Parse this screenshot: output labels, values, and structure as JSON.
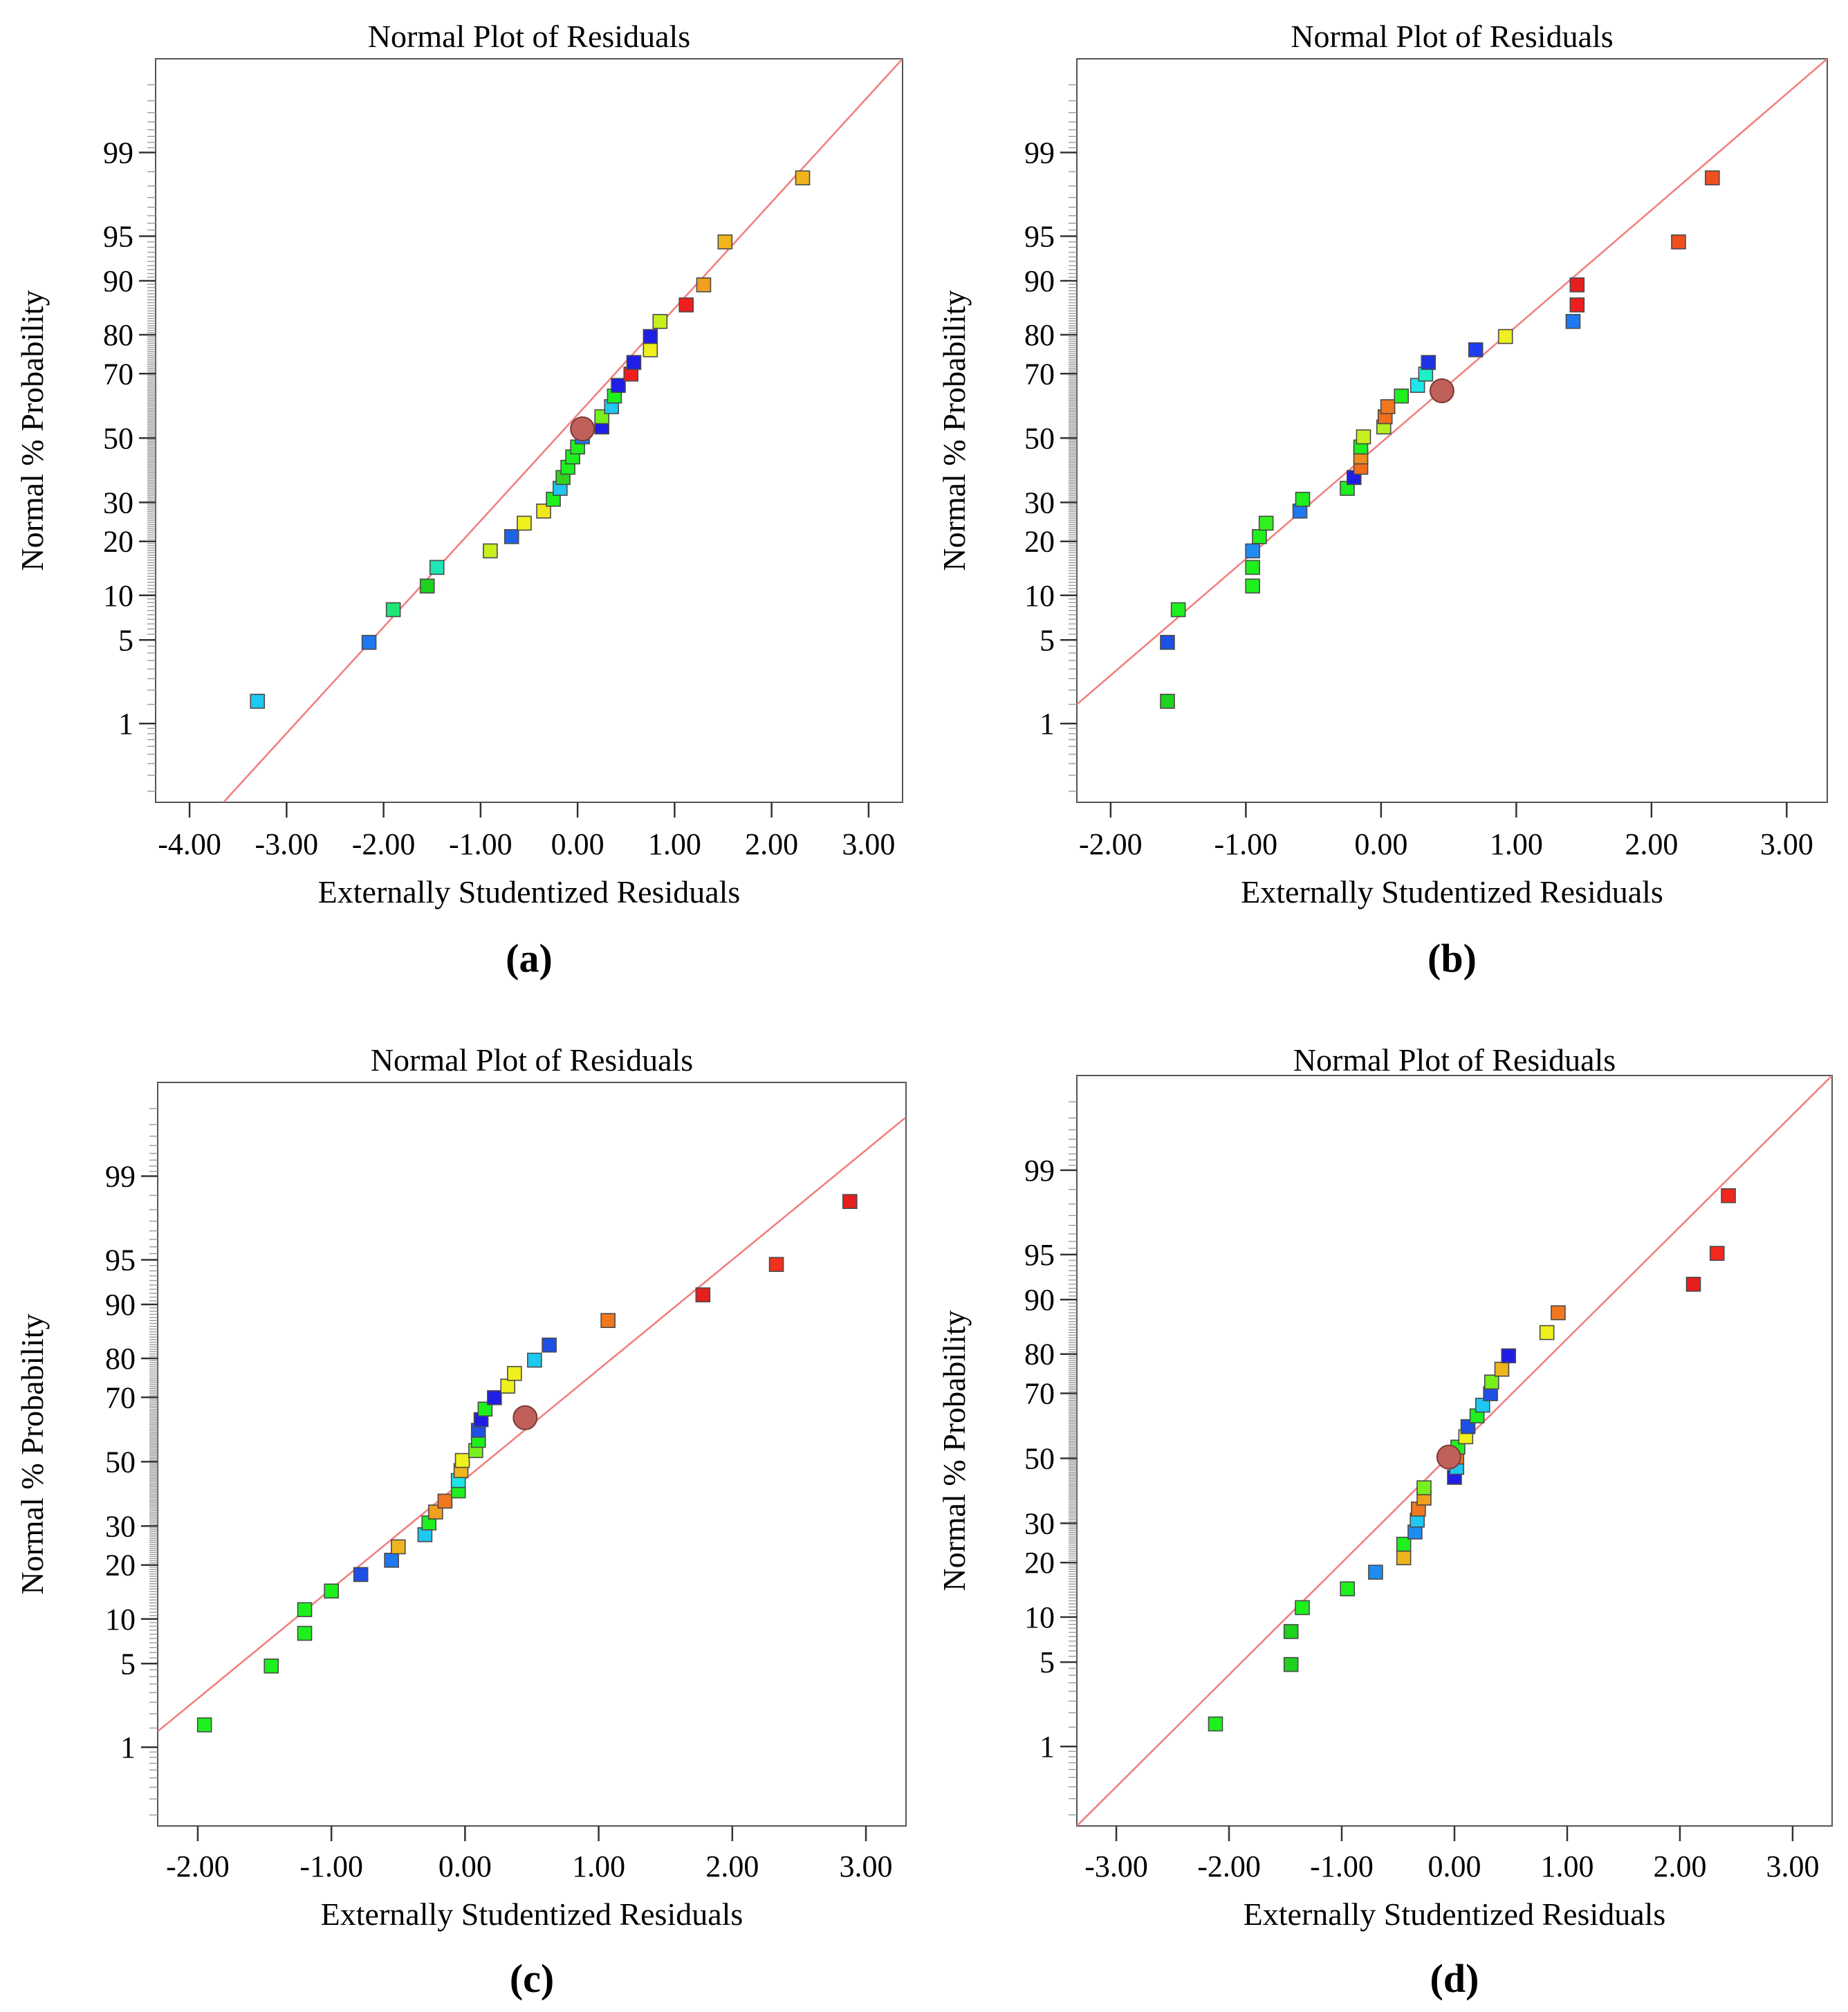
{
  "figure": {
    "panels": [
      {
        "caption": "(a)",
        "chart_data": {
          "type": "scatter",
          "title": "Normal Plot of Residuals",
          "xlabel": "Externally Studentized Residuals",
          "ylabel": "Normal % Probability",
          "x_ticks": [
            "-4.00",
            "-3.00",
            "-2.00",
            "-1.00",
            "0.00",
            "1.00",
            "2.00",
            "3.00"
          ],
          "y_ticks": [
            "1",
            "5",
            "10",
            "20",
            "30",
            "50",
            "70",
            "80",
            "90",
            "95",
            "99"
          ],
          "xlim": [
            -4.35,
            3.35
          ],
          "ylim": [
            0.15,
            99.9
          ],
          "y_scale": "normal-probability",
          "grid": false,
          "reference_line": {
            "x": [
              -3.65,
              3.35
            ],
            "y": [
              0.15,
              99.9
            ],
            "color": "#f08080"
          },
          "highlight_point": {
            "x": 0.05,
            "y": 53,
            "color": "#c0605a"
          },
          "points": [
            {
              "x": -3.3,
              "y": 1.6,
              "color": "#1ec8f0"
            },
            {
              "x": -2.15,
              "y": 4.8,
              "color": "#1e78f0"
            },
            {
              "x": -1.9,
              "y": 8.1,
              "color": "#1ee678"
            },
            {
              "x": -1.55,
              "y": 11.4,
              "color": "#1ed21e"
            },
            {
              "x": -1.45,
              "y": 14.6,
              "color": "#1ee6b4"
            },
            {
              "x": -0.9,
              "y": 17.9,
              "color": "#c8f01e"
            },
            {
              "x": -0.68,
              "y": 21.1,
              "color": "#1e64e6"
            },
            {
              "x": -0.55,
              "y": 24.4,
              "color": "#f0f01e"
            },
            {
              "x": -0.35,
              "y": 27.6,
              "color": "#f0e61e"
            },
            {
              "x": -0.25,
              "y": 30.9,
              "color": "#1ef01e"
            },
            {
              "x": -0.18,
              "y": 34.1,
              "color": "#1ec8f0"
            },
            {
              "x": -0.15,
              "y": 37.4,
              "color": "#32d21e"
            },
            {
              "x": -0.1,
              "y": 40.6,
              "color": "#1ef01e"
            },
            {
              "x": -0.05,
              "y": 43.9,
              "color": "#1ef01e"
            },
            {
              "x": 0.0,
              "y": 47.1,
              "color": "#1ef01e"
            },
            {
              "x": 0.05,
              "y": 50.4,
              "color": "#1e78f0"
            },
            {
              "x": 0.25,
              "y": 53.6,
              "color": "#1e1ee6"
            },
            {
              "x": 0.25,
              "y": 56.9,
              "color": "#78f01e"
            },
            {
              "x": 0.35,
              "y": 60.1,
              "color": "#1ec8f0"
            },
            {
              "x": 0.38,
              "y": 63.4,
              "color": "#1ef01e"
            },
            {
              "x": 0.42,
              "y": 66.6,
              "color": "#1e1ee6"
            },
            {
              "x": 0.55,
              "y": 69.9,
              "color": "#f01e1e"
            },
            {
              "x": 0.58,
              "y": 73.1,
              "color": "#1e1ee6"
            },
            {
              "x": 0.75,
              "y": 76.4,
              "color": "#f0f01e"
            },
            {
              "x": 0.75,
              "y": 79.6,
              "color": "#1e1ee6"
            },
            {
              "x": 0.85,
              "y": 82.9,
              "color": "#c8f01e"
            },
            {
              "x": 1.12,
              "y": 86.1,
              "color": "#f01e1e"
            },
            {
              "x": 1.3,
              "y": 89.4,
              "color": "#f0a01e"
            },
            {
              "x": 1.52,
              "y": 94.5,
              "color": "#f0b41e"
            },
            {
              "x": 2.32,
              "y": 98.3,
              "color": "#f0b41e"
            }
          ]
        }
      },
      {
        "caption": "(b)",
        "chart_data": {
          "type": "scatter",
          "title": "Normal Plot of Residuals",
          "xlabel": "Externally Studentized Residuals",
          "ylabel": "Normal % Probability",
          "x_ticks": [
            "-2.00",
            "-1.00",
            "0.00",
            "1.00",
            "2.00",
            "3.00"
          ],
          "y_ticks": [
            "1",
            "5",
            "10",
            "20",
            "30",
            "50",
            "70",
            "80",
            "90",
            "95",
            "99"
          ],
          "xlim": [
            -2.25,
            3.3
          ],
          "ylim": [
            0.15,
            99.9
          ],
          "y_scale": "normal-probability",
          "grid": false,
          "reference_line": {
            "x": [
              -2.25,
              3.3
            ],
            "y": [
              1.5,
              99.9
            ],
            "color": "#f08080"
          },
          "highlight_point": {
            "x": 0.45,
            "y": 65,
            "color": "#c0605a"
          },
          "points": [
            {
              "x": -1.58,
              "y": 1.6,
              "color": "#1ed21e"
            },
            {
              "x": -1.58,
              "y": 4.8,
              "color": "#1e50e6"
            },
            {
              "x": -1.5,
              "y": 8.1,
              "color": "#1ef01e"
            },
            {
              "x": -0.95,
              "y": 11.4,
              "color": "#1ef01e"
            },
            {
              "x": -0.95,
              "y": 14.6,
              "color": "#1ef01e"
            },
            {
              "x": -0.95,
              "y": 17.9,
              "color": "#1e8cf0"
            },
            {
              "x": -0.9,
              "y": 21.1,
              "color": "#1ef01e"
            },
            {
              "x": -0.85,
              "y": 24.4,
              "color": "#32f01e"
            },
            {
              "x": -0.6,
              "y": 27.6,
              "color": "#1e78f0"
            },
            {
              "x": -0.58,
              "y": 30.9,
              "color": "#1ef01e"
            },
            {
              "x": -0.25,
              "y": 34.1,
              "color": "#1ef01e"
            },
            {
              "x": -0.2,
              "y": 37.4,
              "color": "#1e1ee6"
            },
            {
              "x": -0.15,
              "y": 40.6,
              "color": "#f06e1e"
            },
            {
              "x": -0.15,
              "y": 43.9,
              "color": "#f08c1e"
            },
            {
              "x": -0.15,
              "y": 47.1,
              "color": "#1ef01e"
            },
            {
              "x": -0.13,
              "y": 50.4,
              "color": "#c8f01e"
            },
            {
              "x": 0.02,
              "y": 53.6,
              "color": "#b4f01e"
            },
            {
              "x": 0.03,
              "y": 56.9,
              "color": "#f06e1e"
            },
            {
              "x": 0.05,
              "y": 60.1,
              "color": "#f0781e"
            },
            {
              "x": 0.15,
              "y": 63.4,
              "color": "#1ef01e"
            },
            {
              "x": 0.27,
              "y": 66.6,
              "color": "#1ee6e6"
            },
            {
              "x": 0.33,
              "y": 69.9,
              "color": "#1ef0c8"
            },
            {
              "x": 0.35,
              "y": 73.1,
              "color": "#1e32e6"
            },
            {
              "x": 0.7,
              "y": 76.4,
              "color": "#1e3cf0"
            },
            {
              "x": 0.92,
              "y": 79.6,
              "color": "#f0f01e"
            },
            {
              "x": 1.42,
              "y": 82.9,
              "color": "#1e78f0"
            },
            {
              "x": 1.45,
              "y": 86.1,
              "color": "#f01e1e"
            },
            {
              "x": 1.45,
              "y": 89.4,
              "color": "#e61e1e"
            },
            {
              "x": 2.2,
              "y": 94.5,
              "color": "#f0501e"
            },
            {
              "x": 2.45,
              "y": 98.3,
              "color": "#f0501e"
            }
          ]
        }
      },
      {
        "caption": "(c)",
        "chart_data": {
          "type": "scatter",
          "title": "Normal Plot of Residuals",
          "xlabel": "Externally Studentized Residuals",
          "ylabel": "Normal % Probability",
          "x_ticks": [
            "-2.00",
            "-1.00",
            "0.00",
            "1.00",
            "2.00",
            "3.00"
          ],
          "y_ticks": [
            "1",
            "5",
            "10",
            "20",
            "30",
            "50",
            "70",
            "80",
            "90",
            "95",
            "99"
          ],
          "xlim": [
            -2.3,
            3.3
          ],
          "ylim": [
            0.15,
            99.9
          ],
          "y_scale": "normal-probability",
          "grid": false,
          "reference_line": {
            "x": [
              -2.3,
              3.3
            ],
            "y": [
              1.4,
              99.75
            ],
            "color": "#f08080"
          },
          "highlight_point": {
            "x": 0.45,
            "y": 64,
            "color": "#c0605a"
          },
          "points": [
            {
              "x": -1.95,
              "y": 1.6,
              "color": "#1ef01e"
            },
            {
              "x": -1.45,
              "y": 4.8,
              "color": "#1ef01e"
            },
            {
              "x": -1.2,
              "y": 8.1,
              "color": "#1ef01e"
            },
            {
              "x": -1.2,
              "y": 11.4,
              "color": "#1ef01e"
            },
            {
              "x": -1.0,
              "y": 14.6,
              "color": "#1ef01e"
            },
            {
              "x": -0.78,
              "y": 17.9,
              "color": "#1e50e6"
            },
            {
              "x": -0.55,
              "y": 21.1,
              "color": "#1e78f0"
            },
            {
              "x": -0.5,
              "y": 24.4,
              "color": "#f0b41e"
            },
            {
              "x": -0.3,
              "y": 27.6,
              "color": "#1ec8f0"
            },
            {
              "x": -0.27,
              "y": 30.9,
              "color": "#1ef01e"
            },
            {
              "x": -0.22,
              "y": 34.1,
              "color": "#f0a01e"
            },
            {
              "x": -0.15,
              "y": 37.4,
              "color": "#f0781e"
            },
            {
              "x": -0.05,
              "y": 40.6,
              "color": "#1ef01e"
            },
            {
              "x": -0.05,
              "y": 43.9,
              "color": "#1ee6e6"
            },
            {
              "x": -0.03,
              "y": 47.1,
              "color": "#f0b41e"
            },
            {
              "x": -0.02,
              "y": 50.4,
              "color": "#f0f01e"
            },
            {
              "x": 0.08,
              "y": 53.6,
              "color": "#78f01e"
            },
            {
              "x": 0.1,
              "y": 56.9,
              "color": "#1ef01e"
            },
            {
              "x": 0.1,
              "y": 60.1,
              "color": "#1e50e6"
            },
            {
              "x": 0.12,
              "y": 63.4,
              "color": "#1e1ee6"
            },
            {
              "x": 0.15,
              "y": 66.6,
              "color": "#1ef01e"
            },
            {
              "x": 0.22,
              "y": 69.9,
              "color": "#1e1ee6"
            },
            {
              "x": 0.32,
              "y": 73.1,
              "color": "#f0f01e"
            },
            {
              "x": 0.37,
              "y": 76.4,
              "color": "#f0f01e"
            },
            {
              "x": 0.52,
              "y": 79.6,
              "color": "#1ec8f0"
            },
            {
              "x": 0.63,
              "y": 82.9,
              "color": "#1e50e6"
            },
            {
              "x": 1.07,
              "y": 87.5,
              "color": "#f0781e"
            },
            {
              "x": 1.78,
              "y": 91.3,
              "color": "#e61e1e"
            },
            {
              "x": 2.33,
              "y": 94.6,
              "color": "#f0321e"
            },
            {
              "x": 2.88,
              "y": 98.3,
              "color": "#e61e1e"
            }
          ]
        }
      },
      {
        "caption": "(d)",
        "chart_data": {
          "type": "scatter",
          "title": "Normal Plot of Residuals",
          "xlabel": "Externally Studentized Residuals",
          "ylabel": "Normal % Probability",
          "x_ticks": [
            "-3.00",
            "-2.00",
            "-1.00",
            "0.00",
            "1.00",
            "2.00",
            "3.00"
          ],
          "y_ticks": [
            "1",
            "5",
            "10",
            "20",
            "30",
            "50",
            "70",
            "80",
            "90",
            "95",
            "99"
          ],
          "xlim": [
            -3.35,
            3.35
          ],
          "ylim": [
            0.15,
            99.9
          ],
          "y_scale": "normal-probability",
          "grid": false,
          "reference_line": {
            "x": [
              -3.35,
              3.35
            ],
            "y": [
              0.15,
              99.9
            ],
            "color": "#f08080"
          },
          "highlight_point": {
            "x": -0.05,
            "y": 50.4,
            "color": "#c0605a"
          },
          "points": [
            {
              "x": -2.12,
              "y": 1.6,
              "color": "#1ef01e"
            },
            {
              "x": -1.45,
              "y": 4.8,
              "color": "#1ed21e"
            },
            {
              "x": -1.45,
              "y": 8.1,
              "color": "#1ed21e"
            },
            {
              "x": -1.35,
              "y": 11.4,
              "color": "#1ef01e"
            },
            {
              "x": -0.95,
              "y": 14.6,
              "color": "#1ef01e"
            },
            {
              "x": -0.7,
              "y": 17.9,
              "color": "#1e8cf0"
            },
            {
              "x": -0.45,
              "y": 21.1,
              "color": "#f0b41e"
            },
            {
              "x": -0.45,
              "y": 24.4,
              "color": "#1ef01e"
            },
            {
              "x": -0.35,
              "y": 27.6,
              "color": "#1e8cf0"
            },
            {
              "x": -0.33,
              "y": 30.9,
              "color": "#1ec8f0"
            },
            {
              "x": -0.32,
              "y": 34.1,
              "color": "#f0781e"
            },
            {
              "x": -0.27,
              "y": 37.4,
              "color": "#f0a01e"
            },
            {
              "x": -0.27,
              "y": 40.6,
              "color": "#78f01e"
            },
            {
              "x": 0.0,
              "y": 43.9,
              "color": "#1e1ee6"
            },
            {
              "x": 0.02,
              "y": 47.1,
              "color": "#1ec8f0"
            },
            {
              "x": 0.02,
              "y": 50.4,
              "color": "#f0781e"
            },
            {
              "x": 0.03,
              "y": 53.6,
              "color": "#1ef01e"
            },
            {
              "x": 0.1,
              "y": 56.9,
              "color": "#f0f01e"
            },
            {
              "x": 0.12,
              "y": 60.1,
              "color": "#1e50e6"
            },
            {
              "x": 0.2,
              "y": 63.4,
              "color": "#1ef01e"
            },
            {
              "x": 0.25,
              "y": 66.6,
              "color": "#1ec8f0"
            },
            {
              "x": 0.32,
              "y": 69.9,
              "color": "#1e50e6"
            },
            {
              "x": 0.33,
              "y": 73.1,
              "color": "#78f01e"
            },
            {
              "x": 0.42,
              "y": 76.4,
              "color": "#f0b41e"
            },
            {
              "x": 0.48,
              "y": 79.6,
              "color": "#1e1ee6"
            },
            {
              "x": 0.82,
              "y": 84.5,
              "color": "#f0f01e"
            },
            {
              "x": 0.92,
              "y": 88.0,
              "color": "#f0781e"
            },
            {
              "x": 2.12,
              "y": 92.0,
              "color": "#e61e1e"
            },
            {
              "x": 2.33,
              "y": 95.1,
              "color": "#f0281e"
            },
            {
              "x": 2.43,
              "y": 98.3,
              "color": "#f0281e"
            }
          ]
        }
      }
    ]
  }
}
